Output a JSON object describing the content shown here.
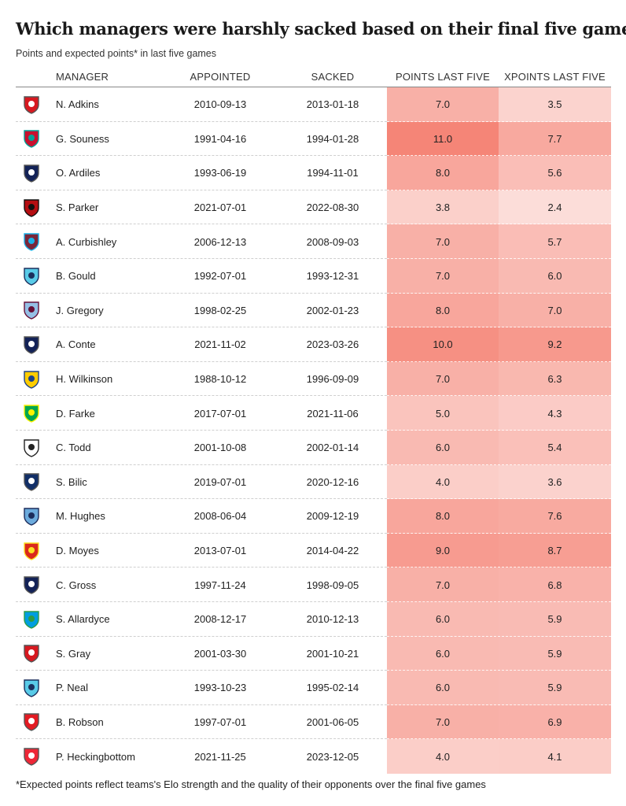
{
  "title": "Which managers were harshly sacked based on their final five games?",
  "subtitle": "Points and expected points* in last five games",
  "footnote": "*Expected points reflect teams's Elo strength and the quality of their opponents over the final five games",
  "columns": {
    "manager": "MANAGER",
    "appointed": "APPOINTED",
    "sacked": "SACKED",
    "points": "POINTS LAST FIVE",
    "xpoints": "XPOINTS LAST FIVE"
  },
  "heat_color": "#f47a6b",
  "chart_data": {
    "type": "table",
    "value_range": [
      0,
      12
    ],
    "rows": [
      {
        "manager": "N. Adkins",
        "crest": "southampton-crest-icon",
        "crest_colors": [
          "#d71920",
          "#ffffff"
        ],
        "appointed": "2010-09-13",
        "sacked": "2013-01-18",
        "points": "7.0",
        "xpoints": "3.5"
      },
      {
        "manager": "G. Souness",
        "crest": "liverpool-crest-icon",
        "crest_colors": [
          "#c8102e",
          "#00a398"
        ],
        "appointed": "1991-04-16",
        "sacked": "1994-01-28",
        "points": "11.0",
        "xpoints": "7.7"
      },
      {
        "manager": "O. Ardiles",
        "crest": "tottenham-crest-icon",
        "crest_colors": [
          "#132257",
          "#ffffff"
        ],
        "appointed": "1993-06-19",
        "sacked": "1994-11-01",
        "points": "8.0",
        "xpoints": "5.6"
      },
      {
        "manager": "S. Parker",
        "crest": "bournemouth-crest-icon",
        "crest_colors": [
          "#b50e12",
          "#111111"
        ],
        "appointed": "2021-07-01",
        "sacked": "2022-08-30",
        "points": "3.8",
        "xpoints": "2.4"
      },
      {
        "manager": "A. Curbishley",
        "crest": "west-ham-crest-icon",
        "crest_colors": [
          "#7a263a",
          "#1bb1e7"
        ],
        "appointed": "2006-12-13",
        "sacked": "2008-09-03",
        "points": "7.0",
        "xpoints": "5.7"
      },
      {
        "manager": "B. Gould",
        "crest": "coventry-crest-icon",
        "crest_colors": [
          "#59cbe8",
          "#1b2f5c"
        ],
        "appointed": "1992-07-01",
        "sacked": "1993-12-31",
        "points": "7.0",
        "xpoints": "6.0"
      },
      {
        "manager": "J. Gregory",
        "crest": "aston-villa-crest-icon",
        "crest_colors": [
          "#95bfe5",
          "#670e36"
        ],
        "appointed": "1998-02-25",
        "sacked": "2002-01-23",
        "points": "8.0",
        "xpoints": "7.0"
      },
      {
        "manager": "A. Conte",
        "crest": "tottenham-crest-icon",
        "crest_colors": [
          "#132257",
          "#ffffff"
        ],
        "appointed": "2021-11-02",
        "sacked": "2023-03-26",
        "points": "10.0",
        "xpoints": "9.2"
      },
      {
        "manager": "H. Wilkinson",
        "crest": "leeds-crest-icon",
        "crest_colors": [
          "#ffcd00",
          "#1d428a"
        ],
        "appointed": "1988-10-12",
        "sacked": "1996-09-09",
        "points": "7.0",
        "xpoints": "6.3"
      },
      {
        "manager": "D. Farke",
        "crest": "norwich-crest-icon",
        "crest_colors": [
          "#00a650",
          "#fff200"
        ],
        "appointed": "2017-07-01",
        "sacked": "2021-11-06",
        "points": "5.0",
        "xpoints": "4.3"
      },
      {
        "manager": "C. Todd",
        "crest": "derby-crest-icon",
        "crest_colors": [
          "#ffffff",
          "#222222"
        ],
        "appointed": "2001-10-08",
        "sacked": "2002-01-14",
        "points": "6.0",
        "xpoints": "5.4"
      },
      {
        "manager": "S. Bilic",
        "crest": "west-brom-crest-icon",
        "crest_colors": [
          "#122f67",
          "#ffffff"
        ],
        "appointed": "2019-07-01",
        "sacked": "2020-12-16",
        "points": "4.0",
        "xpoints": "3.6"
      },
      {
        "manager": "M. Hughes",
        "crest": "man-city-crest-icon",
        "crest_colors": [
          "#6cabdd",
          "#1c2c5b"
        ],
        "appointed": "2008-06-04",
        "sacked": "2009-12-19",
        "points": "8.0",
        "xpoints": "7.6"
      },
      {
        "manager": "D. Moyes",
        "crest": "man-united-crest-icon",
        "crest_colors": [
          "#da291c",
          "#fbe122"
        ],
        "appointed": "2013-07-01",
        "sacked": "2014-04-22",
        "points": "9.0",
        "xpoints": "8.7"
      },
      {
        "manager": "C. Gross",
        "crest": "tottenham-crest-icon",
        "crest_colors": [
          "#132257",
          "#ffffff"
        ],
        "appointed": "1997-11-24",
        "sacked": "1998-09-05",
        "points": "7.0",
        "xpoints": "6.8"
      },
      {
        "manager": "S. Allardyce",
        "crest": "blackburn-crest-icon",
        "crest_colors": [
          "#009ee0",
          "#2e9c45"
        ],
        "appointed": "2008-12-17",
        "sacked": "2010-12-13",
        "points": "6.0",
        "xpoints": "5.9"
      },
      {
        "manager": "S. Gray",
        "crest": "southampton-crest-icon",
        "crest_colors": [
          "#d71920",
          "#ffffff"
        ],
        "appointed": "2001-03-30",
        "sacked": "2001-10-21",
        "points": "6.0",
        "xpoints": "5.9"
      },
      {
        "manager": "P. Neal",
        "crest": "coventry-crest-icon",
        "crest_colors": [
          "#59cbe8",
          "#1b2f5c"
        ],
        "appointed": "1993-10-23",
        "sacked": "1995-02-14",
        "points": "6.0",
        "xpoints": "5.9"
      },
      {
        "manager": "B. Robson",
        "crest": "middlesbrough-crest-icon",
        "crest_colors": [
          "#e31b23",
          "#ffffff"
        ],
        "appointed": "1997-07-01",
        "sacked": "2001-06-05",
        "points": "7.0",
        "xpoints": "6.9"
      },
      {
        "manager": "P. Heckingbottom",
        "crest": "sheffield-united-crest-icon",
        "crest_colors": [
          "#ee2737",
          "#ffffff"
        ],
        "appointed": "2021-11-25",
        "sacked": "2023-12-05",
        "points": "4.0",
        "xpoints": "4.1"
      }
    ]
  }
}
